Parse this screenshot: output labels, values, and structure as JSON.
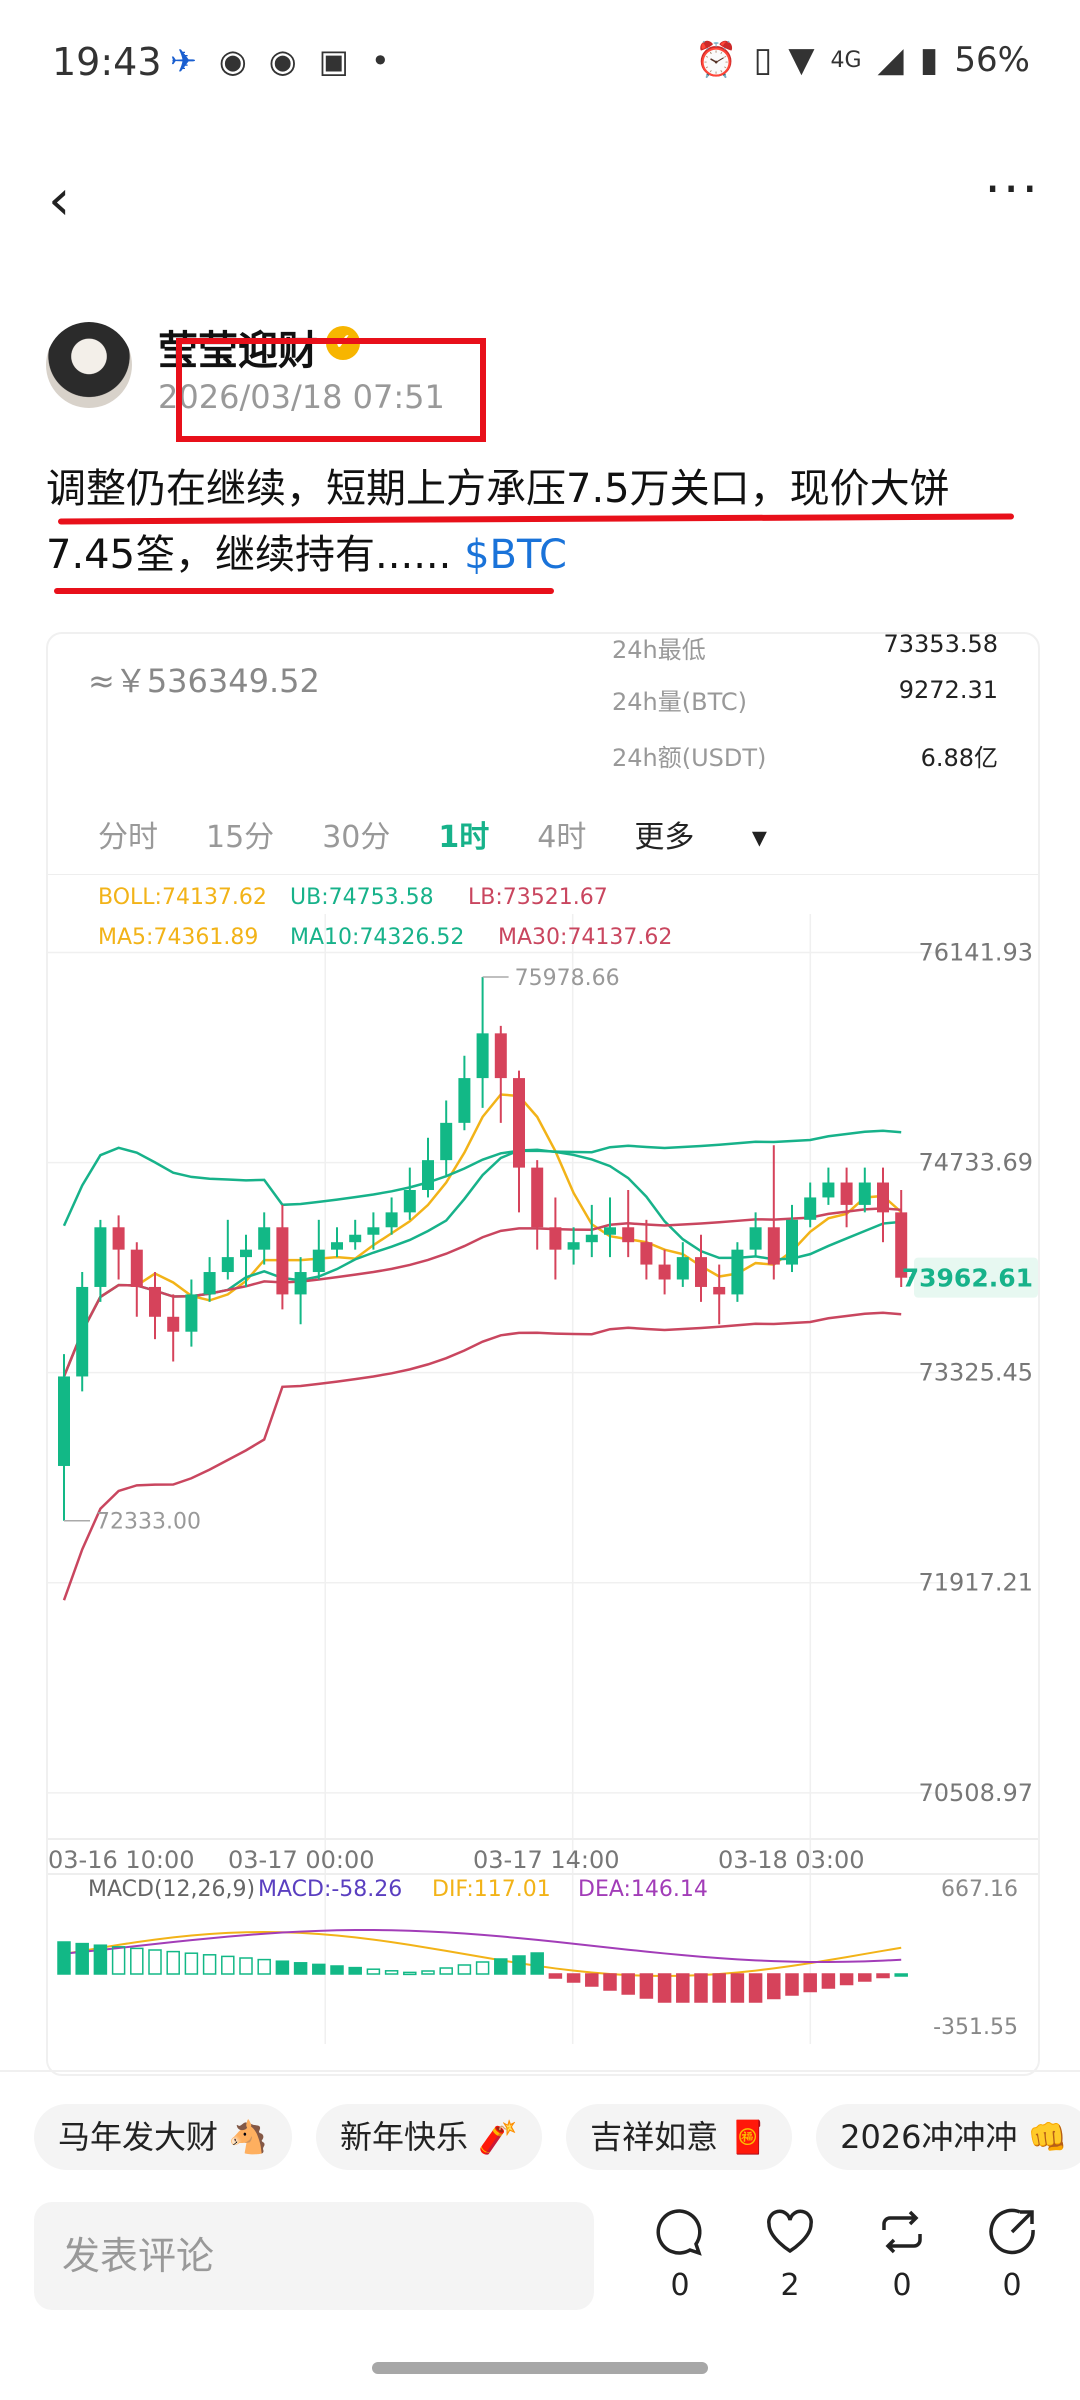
{
  "status_bar": {
    "time": "19:43",
    "battery": "56%",
    "network": "4G"
  },
  "post": {
    "author": "莹莹迎财",
    "date": "2026/03/18 07:51",
    "text_before": "调整仍在继续，短期上方承压7.5万关口，现价大饼7.45筌，继续持有......",
    "tag": "$BTC"
  },
  "ticker": {
    "price_cny": "≈￥536349.52",
    "stats": [
      {
        "label": "24h最低",
        "value": "73353.58"
      },
      {
        "label": "24h量(BTC)",
        "value": "9272.31"
      },
      {
        "label": "24h额(USDT)",
        "value": "6.88亿"
      }
    ],
    "tabs": [
      "分时",
      "15分",
      "30分",
      "1时",
      "4时",
      "更多"
    ],
    "active_tab": "1时"
  },
  "chart_data": {
    "type": "candlestick",
    "indicators_line1": {
      "boll": "BOLL:74137.62",
      "ub": "UB:74753.58",
      "lb": "LB:73521.67"
    },
    "indicators_line2": {
      "ma5": "MA5:74361.89",
      "ma10": "MA10:74326.52",
      "ma30": "MA30:74137.62"
    },
    "y_ticks": [
      "76141.93",
      "74733.69",
      "73325.45",
      "71917.21",
      "70508.97"
    ],
    "current_price": "73962.61",
    "high_label": "75978.66",
    "low_label": "72333.00",
    "x_ticks": [
      "03-16 10:00",
      "03-17 00:00",
      "03-17 14:00",
      "03-18 03:00"
    ],
    "macd_labels": {
      "name": "MACD(12,26,9)",
      "macd": "MACD:-58.26",
      "dif": "DIF:117.01",
      "dea": "DEA:146.14"
    },
    "macd_range": [
      "667.16",
      "-351.55"
    ],
    "candles": [
      [
        72700,
        73300,
        72333,
        73450
      ],
      [
        73300,
        73900,
        73200,
        74000
      ],
      [
        73900,
        74300,
        73800,
        74350
      ],
      [
        74300,
        74150,
        73950,
        74380
      ],
      [
        74150,
        73900,
        73700,
        74200
      ],
      [
        73900,
        73700,
        73550,
        74000
      ],
      [
        73700,
        73600,
        73400,
        73850
      ],
      [
        73600,
        73850,
        73500,
        73950
      ],
      [
        73850,
        74000,
        73800,
        74100
      ],
      [
        74000,
        74100,
        73950,
        74350
      ],
      [
        74100,
        74150,
        73900,
        74250
      ],
      [
        74150,
        74300,
        74050,
        74400
      ],
      [
        74300,
        73850,
        73750,
        74450
      ],
      [
        73850,
        74000,
        73650,
        74100
      ],
      [
        74000,
        74150,
        73950,
        74350
      ],
      [
        74150,
        74200,
        74100,
        74300
      ],
      [
        74200,
        74250,
        74150,
        74350
      ],
      [
        74250,
        74300,
        74150,
        74400
      ],
      [
        74300,
        74400,
        74250,
        74500
      ],
      [
        74400,
        74550,
        74350,
        74700
      ],
      [
        74550,
        74750,
        74500,
        74900
      ],
      [
        74750,
        75000,
        74650,
        75150
      ],
      [
        75000,
        75300,
        74950,
        75450
      ],
      [
        75300,
        75600,
        75100,
        75978
      ],
      [
        75600,
        75300,
        75000,
        75650
      ],
      [
        75300,
        74700,
        74400,
        75350
      ],
      [
        74700,
        74300,
        74150,
        74750
      ],
      [
        74300,
        74150,
        73950,
        74500
      ],
      [
        74150,
        74200,
        74050,
        74300
      ],
      [
        74200,
        74250,
        74100,
        74450
      ],
      [
        74250,
        74300,
        74100,
        74500
      ],
      [
        74300,
        74200,
        74100,
        74550
      ],
      [
        74200,
        74050,
        73950,
        74350
      ],
      [
        74050,
        73950,
        73850,
        74150
      ],
      [
        73950,
        74100,
        73900,
        74200
      ],
      [
        74100,
        73900,
        73800,
        74250
      ],
      [
        73900,
        73850,
        73650,
        74050
      ],
      [
        73850,
        74150,
        73800,
        74200
      ],
      [
        74150,
        74300,
        74100,
        74400
      ],
      [
        74300,
        74050,
        73950,
        74850
      ],
      [
        74050,
        74350,
        74000,
        74450
      ],
      [
        74350,
        74500,
        74300,
        74600
      ],
      [
        74500,
        74600,
        74450,
        74700
      ],
      [
        74600,
        74450,
        74300,
        74700
      ],
      [
        74450,
        74600,
        74400,
        74700
      ],
      [
        74600,
        74400,
        74200,
        74700
      ],
      [
        74400,
        73962,
        73900,
        74550
      ]
    ]
  },
  "chips": [
    "马年发大财 🐴",
    "新年快乐 🧨",
    "吉祥如意 🧧",
    "2026冲冲冲 👊"
  ],
  "comment_placeholder": "发表评论",
  "actions": [
    {
      "name": "comment",
      "count": "0"
    },
    {
      "name": "like",
      "count": "2"
    },
    {
      "name": "repost",
      "count": "0"
    },
    {
      "name": "share",
      "count": "0"
    }
  ],
  "colors": {
    "up": "#12b886",
    "down": "#d6435b",
    "accent": "#17b28a",
    "annotation": "#e8101a",
    "tag": "#1a73d9"
  }
}
